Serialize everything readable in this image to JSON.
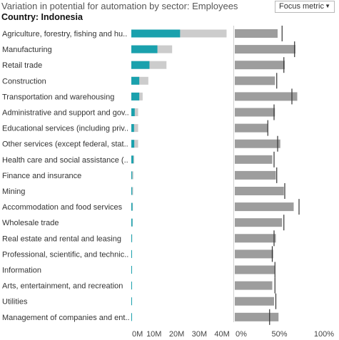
{
  "header": {
    "title": "Variation in potential for automation by sector: Employees",
    "country": "Country: Indonesia"
  },
  "controls": {
    "metric_select_value": "Focus metric",
    "caret_icon": "caret-down-icon"
  },
  "colors": {
    "automatable": "#1aa1ad",
    "total_employees": "#cccccc",
    "potential_bar": "#9d9d9d",
    "marker": "#333333",
    "divider": "#cfcfcf"
  },
  "chart_data": {
    "type": "bar",
    "title": "Variation in potential for automation by sector: Employees",
    "subtitle": "Country: Indonesia",
    "categories": [
      "Agriculture, forestry, fishing and hu..",
      "Manufacturing",
      "Retail trade",
      "Construction",
      "Transportation and warehousing",
      "Administrative and support and gov..",
      "Educational services (including priv..",
      "Other services (except federal, stat..",
      "Health care and social assistance (..",
      "Finance and insurance",
      "Mining",
      "Accommodation and food services",
      "Wholesale trade",
      "Real estate and rental and leasing",
      "Professional, scientific, and technic..",
      "Information",
      "Arts, entertainment, and recreation",
      "Utilities",
      "Management of companies and ent.."
    ],
    "employees": {
      "xlim": [
        0,
        45
      ],
      "tick_labels": [
        "0M",
        "10M",
        "20M",
        "30M",
        "40M"
      ],
      "tick_values": [
        0,
        10,
        20,
        30,
        40
      ],
      "series": [
        {
          "values": [
            21.5,
            11.5,
            8.0,
            3.5,
            3.5,
            1.5,
            1.2,
            1.3,
            0.9,
            0.4,
            0.4,
            0.5,
            0.5,
            0.3,
            0.2,
            0.2,
            0.2,
            0.1,
            0.1
          ]
        },
        {
          "values": [
            42.0,
            18.0,
            15.5,
            7.5,
            5.0,
            3.0,
            3.0,
            3.0,
            1.3,
            0.9,
            0.8,
            0.7,
            0.6,
            0.4,
            0.3,
            0.2,
            0.2,
            0.2,
            0.2
          ]
        }
      ]
    },
    "potential": {
      "xlim": [
        0,
        100
      ],
      "tick_labels": [
        "0%",
        "50%",
        "100%"
      ],
      "tick_values": [
        0,
        50,
        100
      ],
      "series": [
        {
          "values": [
            48,
            68,
            56,
            45,
            70,
            45,
            37,
            51,
            42,
            46,
            55,
            66,
            53,
            46,
            43,
            45,
            42,
            44,
            49
          ]
        },
        {
          "values": [
            53,
            67,
            55,
            47,
            64,
            44,
            37,
            48,
            44,
            47,
            56,
            72,
            55,
            44,
            42,
            45,
            45,
            46,
            39
          ]
        }
      ]
    }
  }
}
